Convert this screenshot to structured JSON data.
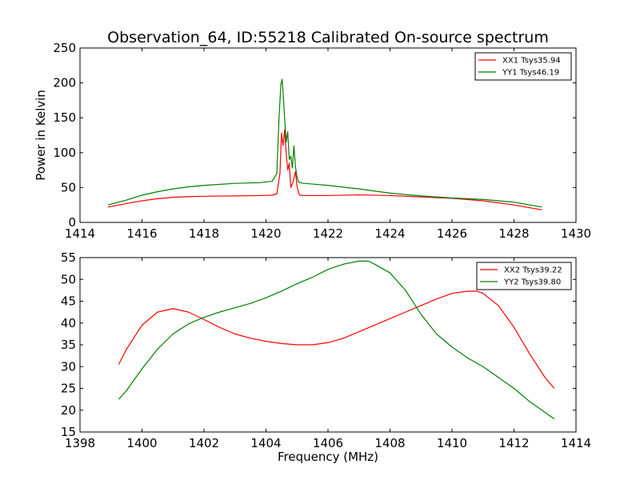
{
  "chart_data": [
    {
      "type": "line",
      "title": "Observation_64, ID:55218 Calibrated On-source spectrum",
      "xlabel": "",
      "ylabel": "Power in Kelvin",
      "xlim": [
        1414,
        1430
      ],
      "ylim": [
        0,
        250
      ],
      "xticks": [
        1414,
        1416,
        1418,
        1420,
        1422,
        1424,
        1426,
        1428,
        1430
      ],
      "yticks": [
        0,
        50,
        100,
        150,
        200,
        250
      ],
      "legend_position": "top-right",
      "series": [
        {
          "name": "XX1 Tsys35.94",
          "color": "#ff0000",
          "x": [
            1414.9,
            1415.5,
            1416.0,
            1416.5,
            1417.0,
            1417.5,
            1418.0,
            1419.0,
            1419.8,
            1420.2,
            1420.35,
            1420.45,
            1420.5,
            1420.55,
            1420.6,
            1420.65,
            1420.7,
            1420.75,
            1420.8,
            1420.85,
            1420.9,
            1420.95,
            1421.0,
            1421.05,
            1421.1,
            1421.2,
            1421.5,
            1422.0,
            1423.0,
            1424.0,
            1425.0,
            1426.0,
            1427.0,
            1428.0,
            1428.9
          ],
          "y": [
            22,
            27,
            31,
            34,
            36,
            37,
            37.5,
            38,
            38.5,
            39,
            41,
            70,
            128,
            110,
            133,
            100,
            75,
            85,
            50,
            55,
            63,
            73,
            52,
            42,
            39,
            38.5,
            38.5,
            38.5,
            39.5,
            38.5,
            36.5,
            34.5,
            31,
            25,
            18
          ]
        },
        {
          "name": "YY1 Tsys46.19",
          "color": "#008000",
          "x": [
            1414.9,
            1415.5,
            1416.0,
            1416.5,
            1417.0,
            1417.5,
            1418.0,
            1419.0,
            1419.8,
            1420.2,
            1420.35,
            1420.42,
            1420.48,
            1420.52,
            1420.56,
            1420.6,
            1420.65,
            1420.7,
            1420.75,
            1420.8,
            1420.85,
            1420.9,
            1420.95,
            1421.0,
            1421.05,
            1421.1,
            1421.2,
            1421.5,
            1422.0,
            1423.0,
            1424.0,
            1425.0,
            1426.0,
            1427.0,
            1428.0,
            1428.9
          ],
          "y": [
            25,
            32,
            39,
            44,
            48,
            51,
            53,
            56,
            57,
            59,
            70,
            150,
            198,
            205,
            180,
            150,
            115,
            130,
            90,
            95,
            78,
            110,
            80,
            65,
            58,
            57,
            56,
            55,
            53,
            48,
            42,
            38,
            35,
            33,
            29,
            22
          ]
        }
      ]
    },
    {
      "type": "line",
      "title": "",
      "xlabel": "Frequency (MHz)",
      "ylabel": "",
      "xlim": [
        1398,
        1414
      ],
      "ylim": [
        15,
        55
      ],
      "xticks": [
        1398,
        1400,
        1402,
        1404,
        1406,
        1408,
        1410,
        1412,
        1414
      ],
      "yticks": [
        15,
        20,
        25,
        30,
        35,
        40,
        45,
        50,
        55
      ],
      "legend_position": "top-right",
      "series": [
        {
          "name": "XX2 Tsys39.22",
          "color": "#ff0000",
          "x": [
            1399.25,
            1399.5,
            1400.0,
            1400.5,
            1401.0,
            1401.5,
            1402.0,
            1402.5,
            1403.0,
            1403.5,
            1404.0,
            1404.5,
            1405.0,
            1405.5,
            1406.0,
            1406.5,
            1407.0,
            1407.5,
            1408.0,
            1408.5,
            1409.0,
            1409.5,
            1410.0,
            1410.5,
            1410.8,
            1411.0,
            1411.5,
            1412.0,
            1412.5,
            1413.0,
            1413.3
          ],
          "y": [
            30.5,
            34,
            39.5,
            42.5,
            43.3,
            42.5,
            40.8,
            39,
            37.5,
            36.5,
            35.8,
            35.3,
            35,
            35,
            35.5,
            36.5,
            38,
            39.5,
            41,
            42.5,
            44,
            45.5,
            46.8,
            47.3,
            47.3,
            46.8,
            44,
            39,
            33,
            27.5,
            25
          ]
        },
        {
          "name": "YY2 Tsys39.80",
          "color": "#008000",
          "x": [
            1399.25,
            1399.5,
            1400.0,
            1400.5,
            1401.0,
            1401.5,
            1402.0,
            1402.5,
            1403.0,
            1403.5,
            1404.0,
            1404.5,
            1405.0,
            1405.5,
            1406.0,
            1406.5,
            1407.0,
            1407.3,
            1407.5,
            1408.0,
            1408.5,
            1409.0,
            1409.5,
            1410.0,
            1410.5,
            1411.0,
            1411.5,
            1412.0,
            1412.5,
            1413.0,
            1413.3
          ],
          "y": [
            22.5,
            24.5,
            29.5,
            34,
            37.5,
            39.8,
            41.3,
            42.5,
            43.5,
            44.5,
            45.8,
            47.3,
            49,
            50.5,
            52.3,
            53.5,
            54.2,
            54.2,
            53.5,
            51.5,
            47.5,
            42,
            37.5,
            34.5,
            32,
            30,
            27.5,
            25,
            22,
            19.5,
            18
          ]
        }
      ]
    }
  ]
}
